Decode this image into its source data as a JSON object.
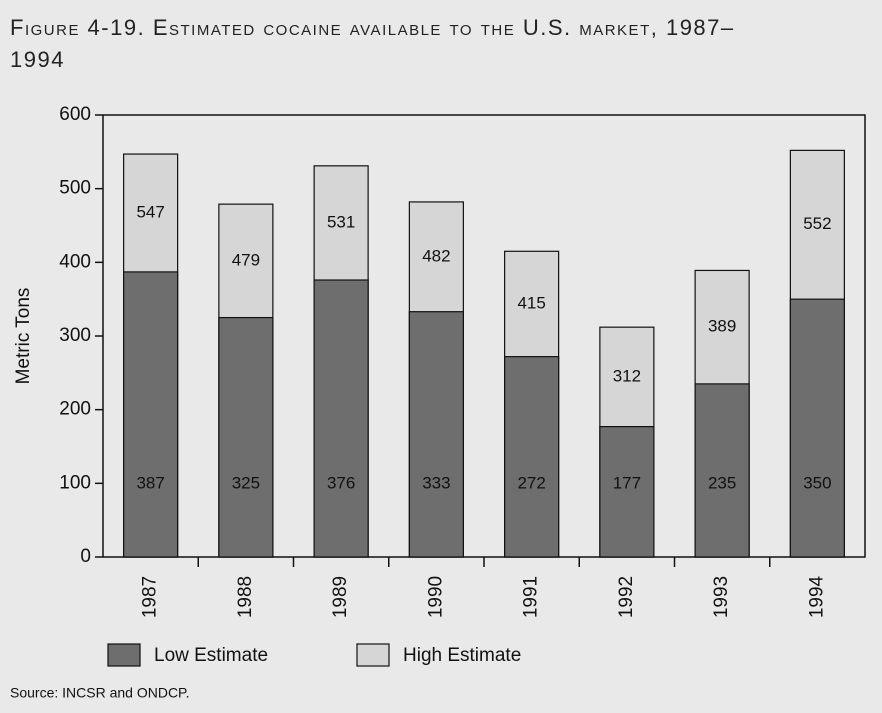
{
  "chart_data": {
    "type": "bar",
    "title": "Figure 4-19. Estimated cocaine available to the U.S. market, 1987–1994",
    "y_label": "Metric Tons",
    "source": "Source: INCSR and ONDCP.",
    "categories": [
      "1987",
      "1988",
      "1989",
      "1990",
      "1991",
      "1992",
      "1993",
      "1994"
    ],
    "series": [
      {
        "name": "Low Estimate",
        "color": "#6e6e6e",
        "values": [
          387,
          325,
          376,
          333,
          272,
          177,
          235,
          350
        ]
      },
      {
        "name": "High Estimate",
        "color": "#d6d6d6",
        "values": [
          547,
          479,
          531,
          482,
          415,
          312,
          389,
          552
        ]
      }
    ],
    "ylim": [
      0,
      600
    ],
    "yticks": [
      0,
      100,
      200,
      300,
      400,
      500,
      600
    ],
    "grid": false
  }
}
